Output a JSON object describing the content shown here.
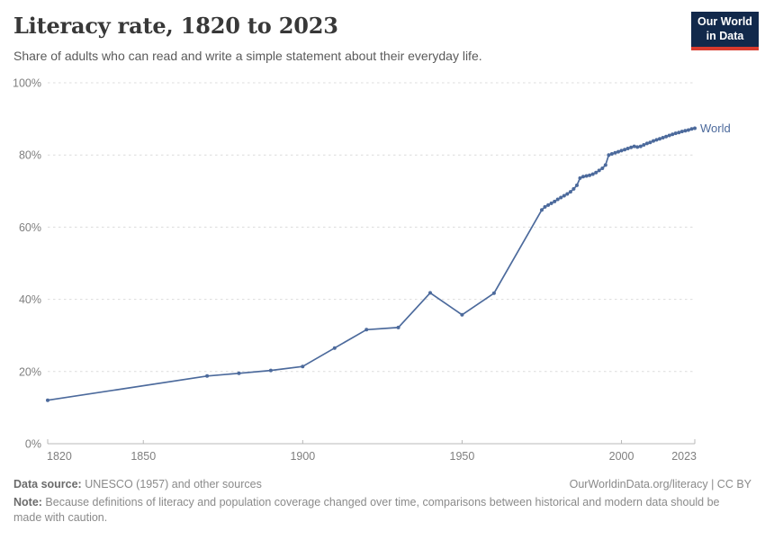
{
  "header": {
    "title": "Literacy rate, 1820 to 2023",
    "subtitle": "Share of adults who can read and write a simple statement about their everyday life."
  },
  "logo": {
    "line1": "Our World",
    "line2": "in Data",
    "bg_color": "#12294B",
    "bar_color": "#D93A2D"
  },
  "footer": {
    "data_source_label": "Data source:",
    "data_source_text": " UNESCO (1957) and other sources",
    "link_text": "OurWorldinData.org/literacy | CC BY",
    "note_label": "Note:",
    "note_text": " Because definitions of literacy and population coverage changed over time, comparisons between historical and modern data should be made with caution."
  },
  "chart_data": {
    "type": "line",
    "title": "Literacy rate, 1820 to 2023",
    "xlabel": "",
    "ylabel": "",
    "xlim": [
      1820,
      2023
    ],
    "ylim": [
      0,
      100
    ],
    "xticks": [
      1820,
      1850,
      1900,
      1950,
      2000,
      2023
    ],
    "yticks": [
      0,
      20,
      40,
      60,
      80,
      100
    ],
    "ytick_suffix": "%",
    "grid": "horizontal-dashed",
    "legend_position": "end-of-line-label",
    "colors": {
      "line": "#4C6A9C",
      "grid": "#dcdcdc",
      "axis": "#b8b8b8",
      "tick_label": "#7f7f7f"
    },
    "series": [
      {
        "name": "World",
        "color": "#4C6A9C",
        "points": [
          [
            1820,
            12.05
          ],
          [
            1870,
            18.75
          ],
          [
            1880,
            19.5
          ],
          [
            1890,
            20.3
          ],
          [
            1900,
            21.4
          ],
          [
            1910,
            26.5
          ],
          [
            1920,
            31.6
          ],
          [
            1930,
            32.2
          ],
          [
            1940,
            41.8
          ],
          [
            1950,
            35.7
          ],
          [
            1960,
            41.7
          ],
          [
            1975,
            64.8
          ],
          [
            1976,
            65.6
          ],
          [
            1977,
            66.1
          ],
          [
            1978,
            66.6
          ],
          [
            1979,
            67.1
          ],
          [
            1980,
            67.7
          ],
          [
            1981,
            68.2
          ],
          [
            1982,
            68.7
          ],
          [
            1983,
            69.2
          ],
          [
            1984,
            69.8
          ],
          [
            1985,
            70.6
          ],
          [
            1986,
            71.6
          ],
          [
            1987,
            73.6
          ],
          [
            1988,
            74.0
          ],
          [
            1989,
            74.2
          ],
          [
            1990,
            74.4
          ],
          [
            1991,
            74.7
          ],
          [
            1992,
            75.1
          ],
          [
            1993,
            75.7
          ],
          [
            1994,
            76.3
          ],
          [
            1995,
            77.2
          ],
          [
            1996,
            80.0
          ],
          [
            1997,
            80.3
          ],
          [
            1998,
            80.6
          ],
          [
            1999,
            80.9
          ],
          [
            2000,
            81.2
          ],
          [
            2001,
            81.5
          ],
          [
            2002,
            81.8
          ],
          [
            2003,
            82.1
          ],
          [
            2004,
            82.4
          ],
          [
            2005,
            82.2
          ],
          [
            2006,
            82.4
          ],
          [
            2007,
            82.8
          ],
          [
            2008,
            83.2
          ],
          [
            2009,
            83.5
          ],
          [
            2010,
            83.9
          ],
          [
            2011,
            84.2
          ],
          [
            2012,
            84.5
          ],
          [
            2013,
            84.8
          ],
          [
            2014,
            85.1
          ],
          [
            2015,
            85.4
          ],
          [
            2016,
            85.7
          ],
          [
            2017,
            86.0
          ],
          [
            2018,
            86.2
          ],
          [
            2019,
            86.5
          ],
          [
            2020,
            86.7
          ],
          [
            2021,
            86.9
          ],
          [
            2022,
            87.2
          ],
          [
            2023,
            87.4
          ]
        ]
      }
    ]
  }
}
